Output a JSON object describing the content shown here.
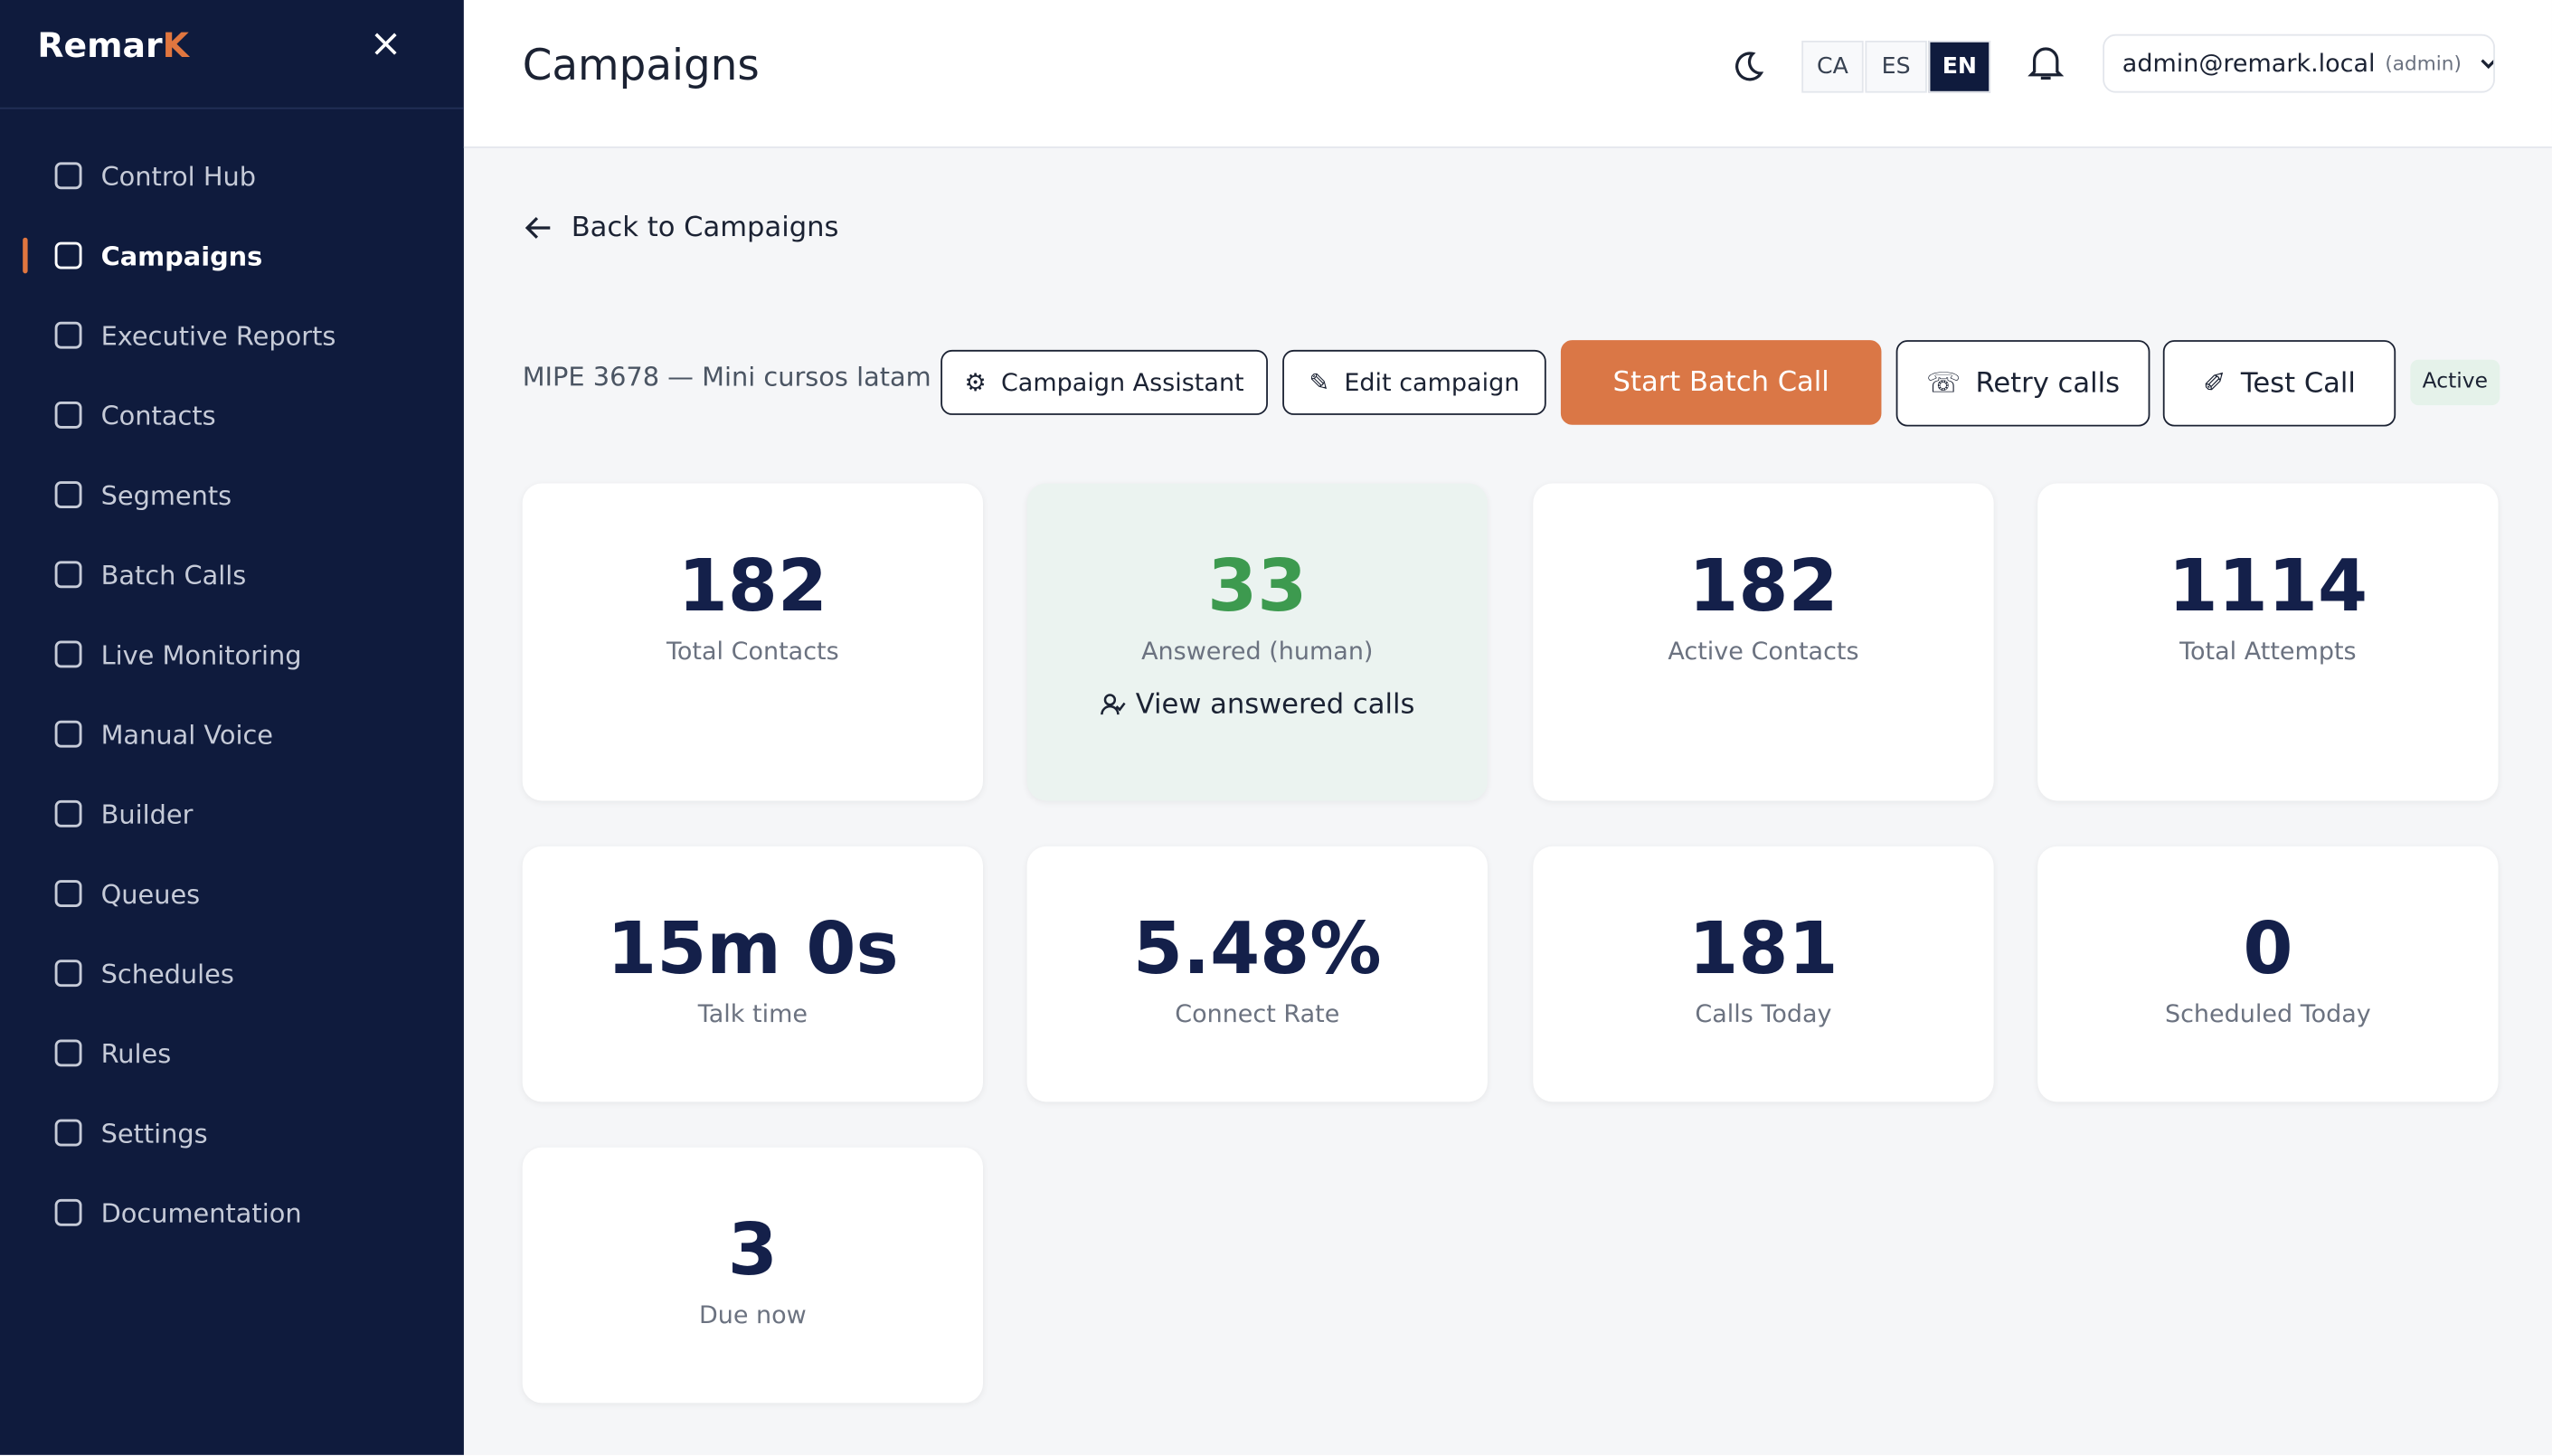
{
  "sidebar": {
    "brand": "Remar",
    "brand_accent": "K",
    "nav": [
      "Control Hub",
      "Campaigns",
      "Executive Reports",
      "Contacts",
      "Segments",
      "Batch Calls",
      "Live Monitoring",
      "Manual Voice",
      "Builder",
      "Queues",
      "Schedules",
      "Rules",
      "Settings",
      "Documentation"
    ]
  },
  "header": {
    "title": "Campaigns",
    "languages": [
      "CA",
      "ES",
      "EN"
    ],
    "user": "admin@remark.local",
    "role": "(admin)"
  },
  "back_link": "Back to Campaigns",
  "campaign": {
    "name": "MIPE 3678 — Mini cursos latam",
    "buttons": [
      "Campaign Assistant",
      "Edit campaign",
      "Start Batch Call",
      "Retry calls",
      "Test Call"
    ],
    "status": "Active"
  },
  "stats": [
    {
      "value": "182",
      "label": "Total Contacts"
    },
    {
      "value": "33",
      "label": "Answered (human)",
      "link": "View answered calls"
    },
    {
      "value": "182",
      "label": "Active Contacts"
    },
    {
      "value": "1114",
      "label": "Total Attempts"
    },
    {
      "value": "15m 0s",
      "label": "Talk time"
    },
    {
      "value": "5.48%",
      "label": "Connect Rate"
    },
    {
      "value": "181",
      "label": "Calls Today"
    },
    {
      "value": "0",
      "label": "Scheduled Today"
    },
    {
      "value": "3",
      "label": "Due now"
    }
  ]
}
